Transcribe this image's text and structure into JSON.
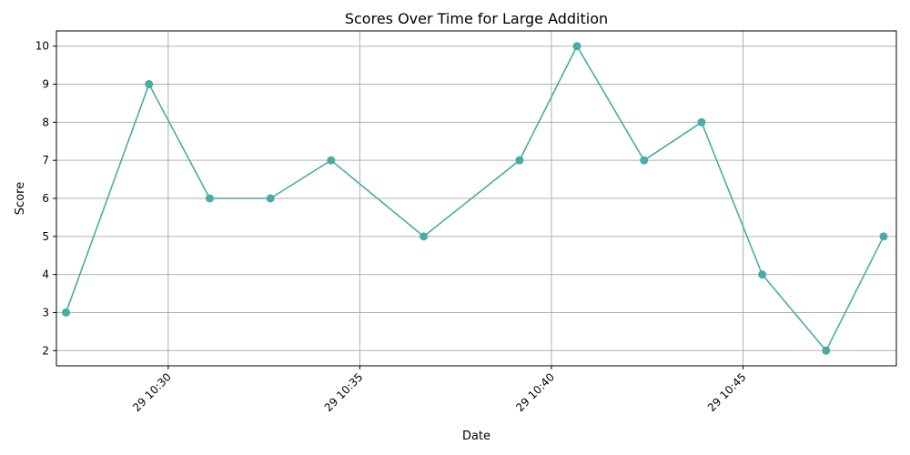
{
  "chart_data": {
    "type": "line",
    "title": "Scores Over Time for Large Addition",
    "xlabel": "Date",
    "ylabel": "Score",
    "x_ticks": [
      "29 10:30",
      "29 10:35",
      "29 10:40",
      "29 10:45"
    ],
    "y_ticks": [
      2,
      3,
      4,
      5,
      6,
      7,
      8,
      9,
      10
    ],
    "ylim": [
      1.6,
      10.4
    ],
    "xlim": [
      "10:27:05",
      "10:49:00"
    ],
    "grid": true,
    "series": [
      {
        "x": [
          "10:27:20",
          "10:29:30",
          "10:31:05",
          "10:32:40",
          "10:34:15",
          "10:36:40",
          "10:39:10",
          "10:40:40",
          "10:42:25",
          "10:43:55",
          "10:45:30",
          "10:47:10",
          "10:48:40"
        ],
        "values": [
          3,
          9,
          6,
          6,
          7,
          5,
          7,
          10,
          7,
          8,
          4,
          2,
          5
        ],
        "color": "#4aaba5"
      }
    ]
  }
}
